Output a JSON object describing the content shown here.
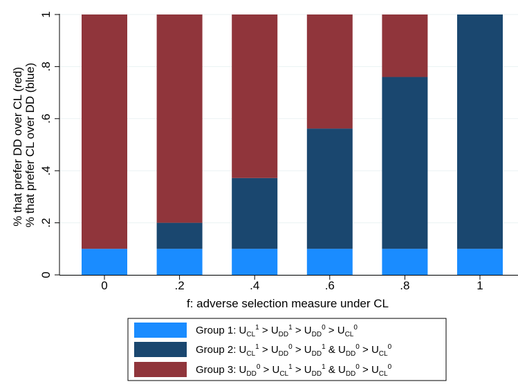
{
  "chart_data": {
    "type": "bar",
    "stacked": true,
    "categories": [
      "0",
      ".2",
      ".4",
      ".6",
      ".8",
      "1"
    ],
    "series": [
      {
        "key": "group1",
        "values": [
          0.1,
          0.1,
          0.1,
          0.1,
          0.1,
          0.1
        ],
        "color": "#1a8cff"
      },
      {
        "key": "group2",
        "values": [
          0.0,
          0.1,
          0.272,
          0.462,
          0.66,
          0.9
        ],
        "color": "#1a476f"
      },
      {
        "key": "group3",
        "values": [
          0.9,
          0.8,
          0.628,
          0.438,
          0.24,
          0.0
        ],
        "color": "#90353b"
      }
    ],
    "xlabel": "f: adverse selection measure under CL",
    "ylabel_lines": [
      "% that prefer DD over CL (red)",
      "% that prefer CL over DD (blue)"
    ],
    "ylim": [
      0,
      1
    ],
    "yticks": [
      {
        "value": 0,
        "label": "0"
      },
      {
        "value": 0.2,
        "label": ".2"
      },
      {
        "value": 0.4,
        "label": ".4"
      },
      {
        "value": 0.6,
        "label": ".6"
      },
      {
        "value": 0.8,
        "label": ".8"
      },
      {
        "value": 1,
        "label": "1"
      }
    ],
    "grid": true,
    "legend_position": "bottom",
    "legend": [
      {
        "series": "group1",
        "color": "#1a8cff",
        "parts": [
          [
            "t",
            "Group 1: U"
          ],
          [
            "s",
            "CL"
          ],
          [
            "p",
            "1"
          ],
          [
            "t",
            " > U"
          ],
          [
            "s",
            "DD"
          ],
          [
            "p",
            "1"
          ],
          [
            "t",
            " > U"
          ],
          [
            "s",
            "DD"
          ],
          [
            "p",
            "0"
          ],
          [
            "t",
            " > U"
          ],
          [
            "s",
            "CL"
          ],
          [
            "p",
            "0"
          ]
        ]
      },
      {
        "series": "group2",
        "color": "#1a476f",
        "parts": [
          [
            "t",
            "Group 2: U"
          ],
          [
            "s",
            "CL"
          ],
          [
            "p",
            "1"
          ],
          [
            "t",
            " > U"
          ],
          [
            "s",
            "DD"
          ],
          [
            "p",
            "0"
          ],
          [
            "t",
            " > U"
          ],
          [
            "s",
            "DD"
          ],
          [
            "p",
            "1"
          ],
          [
            "t",
            " & U"
          ],
          [
            "s",
            "DD"
          ],
          [
            "p",
            "0"
          ],
          [
            "t",
            " > U"
          ],
          [
            "s",
            "CL"
          ],
          [
            "p",
            "0"
          ]
        ]
      },
      {
        "series": "group3",
        "color": "#90353b",
        "parts": [
          [
            "t",
            "Group 3: U"
          ],
          [
            "s",
            "DD"
          ],
          [
            "p",
            "0"
          ],
          [
            "t",
            " > U"
          ],
          [
            "s",
            "CL"
          ],
          [
            "p",
            "1"
          ],
          [
            "t",
            " > U"
          ],
          [
            "s",
            "DD"
          ],
          [
            "p",
            "1"
          ],
          [
            "t",
            " & U"
          ],
          [
            "s",
            "DD"
          ],
          [
            "p",
            "0"
          ],
          [
            "t",
            " > U"
          ],
          [
            "s",
            "CL"
          ],
          [
            "p",
            "0"
          ]
        ]
      }
    ]
  }
}
